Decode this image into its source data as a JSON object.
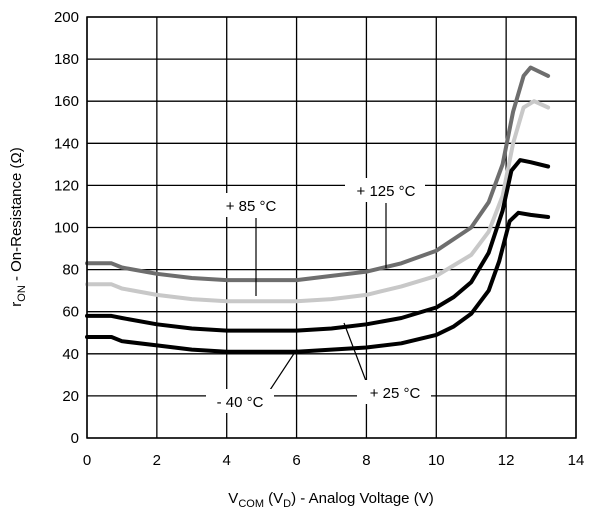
{
  "chart_data": {
    "type": "line",
    "xlabel": {
      "main": "V",
      "sub1": "COM",
      "mid": " (V",
      "sub2": "D",
      "rest": ") - Analog Voltage (V)"
    },
    "ylabel": {
      "main": "r",
      "sub": "ON",
      "rest": " - On-Resistance (Ω)"
    },
    "xlim": [
      0,
      14
    ],
    "ylim": [
      0,
      200
    ],
    "xticks": [
      0,
      2,
      4,
      6,
      8,
      10,
      12,
      14
    ],
    "yticks": [
      0,
      20,
      40,
      60,
      80,
      100,
      120,
      140,
      160,
      180,
      200
    ],
    "grid": true,
    "series": [
      {
        "name": "+ 125 °C",
        "color": "#6e6e6e",
        "points": [
          [
            0,
            83
          ],
          [
            0.7,
            83
          ],
          [
            1,
            81
          ],
          [
            2,
            78
          ],
          [
            3,
            76
          ],
          [
            4,
            75
          ],
          [
            5,
            75
          ],
          [
            6,
            75
          ],
          [
            7,
            77
          ],
          [
            8,
            79
          ],
          [
            9,
            83
          ],
          [
            10,
            89
          ],
          [
            11,
            100
          ],
          [
            11.5,
            112
          ],
          [
            11.9,
            130
          ],
          [
            12.2,
            155
          ],
          [
            12.5,
            172
          ],
          [
            12.7,
            176
          ],
          [
            13.2,
            172
          ]
        ]
      },
      {
        "name": "+ 85 °C",
        "color": "#c8c8c8",
        "points": [
          [
            0,
            73
          ],
          [
            0.7,
            73
          ],
          [
            1,
            71
          ],
          [
            2,
            68
          ],
          [
            3,
            66
          ],
          [
            4,
            65
          ],
          [
            5,
            65
          ],
          [
            6,
            65
          ],
          [
            7,
            66
          ],
          [
            8,
            68
          ],
          [
            9,
            72
          ],
          [
            10,
            77
          ],
          [
            11,
            87
          ],
          [
            11.5,
            98
          ],
          [
            11.9,
            115
          ],
          [
            12.2,
            140
          ],
          [
            12.5,
            157
          ],
          [
            12.8,
            160
          ],
          [
            13.2,
            157
          ]
        ]
      },
      {
        "name": "+ 25 °C",
        "color": "#000000",
        "points": [
          [
            0,
            58
          ],
          [
            0.7,
            58
          ],
          [
            1,
            57
          ],
          [
            2,
            54
          ],
          [
            3,
            52
          ],
          [
            4,
            51
          ],
          [
            5,
            51
          ],
          [
            6,
            51
          ],
          [
            7,
            52
          ],
          [
            8,
            54
          ],
          [
            9,
            57
          ],
          [
            10,
            62
          ],
          [
            10.5,
            67
          ],
          [
            11,
            74
          ],
          [
            11.5,
            88
          ],
          [
            11.9,
            108
          ],
          [
            12.15,
            127
          ],
          [
            12.4,
            132
          ],
          [
            12.7,
            131
          ],
          [
            13.2,
            129
          ]
        ]
      },
      {
        "name": "- 40 °C",
        "color": "#000000",
        "points": [
          [
            0,
            48
          ],
          [
            0.7,
            48
          ],
          [
            1,
            46
          ],
          [
            2,
            44
          ],
          [
            3,
            42
          ],
          [
            4,
            41
          ],
          [
            5,
            41
          ],
          [
            6,
            41
          ],
          [
            7,
            42
          ],
          [
            8,
            43
          ],
          [
            9,
            45
          ],
          [
            10,
            49
          ],
          [
            10.5,
            53
          ],
          [
            11,
            59
          ],
          [
            11.5,
            70
          ],
          [
            11.8,
            84
          ],
          [
            12.1,
            103
          ],
          [
            12.35,
            107
          ],
          [
            12.7,
            106
          ],
          [
            13.2,
            105
          ]
        ]
      }
    ],
    "annotations": [
      {
        "text": "+ 125 °C",
        "series": 0
      },
      {
        "text": "+ 85 °C",
        "series": 1
      },
      {
        "text": "+ 25 °C",
        "series": 2
      },
      {
        "text": "- 40 °C",
        "series": 3
      }
    ]
  }
}
